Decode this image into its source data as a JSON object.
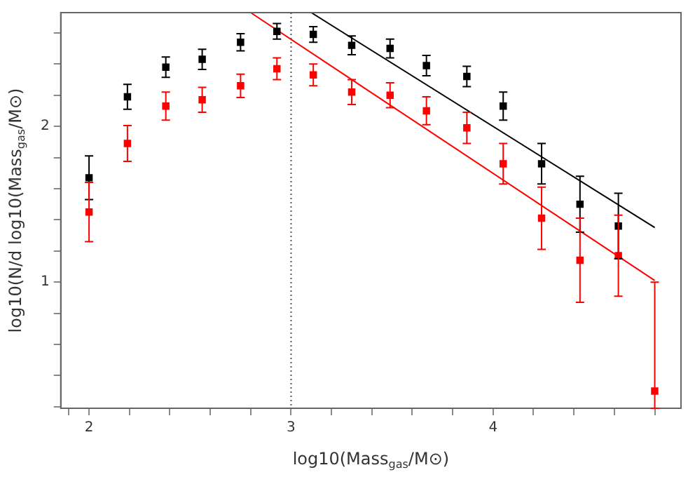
{
  "chart_data": {
    "type": "scatter",
    "xlabel": "log10(Mass$_{gas}$/M⊙)",
    "ylabel": "log10(N/d log10(Mass$_{gas}$/M⊙)",
    "marker": "square",
    "grid": false,
    "legend": false,
    "xlim": [
      1.86,
      4.93
    ],
    "ylim": [
      0.19,
      2.73
    ],
    "xticks": [
      {
        "value": 1.9,
        "label": null
      },
      2,
      {
        "value": 2.2,
        "label": null
      },
      {
        "value": 2.4,
        "label": null
      },
      {
        "value": 2.6,
        "label": null
      },
      {
        "value": 2.8,
        "label": null
      },
      3,
      {
        "value": 3.2,
        "label": null
      },
      {
        "value": 3.4,
        "label": null
      },
      {
        "value": 3.6,
        "label": null
      },
      {
        "value": 3.8,
        "label": null
      },
      4,
      {
        "value": 4.2,
        "label": null
      },
      {
        "value": 4.4,
        "label": null
      },
      {
        "value": 4.6,
        "label": null
      },
      {
        "value": 4.8,
        "label": null
      }
    ],
    "yticks": [
      {
        "value": 0.2,
        "label": null
      },
      {
        "value": 0.4,
        "label": null
      },
      {
        "value": 0.6,
        "label": null
      },
      {
        "value": 0.8,
        "label": null
      },
      1,
      {
        "value": 1.2,
        "label": null
      },
      {
        "value": 1.4,
        "label": null
      },
      {
        "value": 1.6,
        "label": null
      },
      {
        "value": 1.8,
        "label": null
      },
      2,
      {
        "value": 2.2,
        "label": null
      },
      {
        "value": 2.4,
        "label": null
      },
      {
        "value": 2.6,
        "label": null
      }
    ],
    "ref_lines": [
      {
        "axis": "x",
        "value": 3,
        "color": "#555555",
        "line_style": "dotted"
      }
    ],
    "series": [
      {
        "color": "#000000",
        "x": [
          2.0,
          2.19,
          2.38,
          2.56,
          2.75,
          2.93,
          3.11,
          3.3,
          3.49,
          3.67,
          3.87,
          4.05,
          4.24,
          4.43,
          4.62
        ],
        "values": [
          1.67,
          2.19,
          2.38,
          2.43,
          2.54,
          2.61,
          2.59,
          2.52,
          2.5,
          2.39,
          2.32,
          2.13,
          1.76,
          1.5,
          1.36
        ],
        "errors": [
          0.14,
          0.08,
          0.065,
          0.065,
          0.055,
          0.05,
          0.05,
          0.06,
          0.06,
          0.065,
          0.065,
          0.09,
          0.13,
          0.18,
          0.21
        ]
      },
      {
        "color": "#ff0000",
        "x": [
          2.0,
          2.19,
          2.38,
          2.56,
          2.75,
          2.93,
          3.11,
          3.3,
          3.49,
          3.67,
          3.87,
          4.05,
          4.24,
          4.43,
          4.62,
          4.8
        ],
        "values": [
          1.45,
          1.89,
          2.13,
          2.17,
          2.26,
          2.37,
          2.33,
          2.22,
          2.2,
          2.1,
          1.99,
          1.76,
          1.41,
          1.14,
          1.17,
          0.3
        ],
        "errors": [
          0.19,
          0.115,
          0.09,
          0.08,
          0.075,
          0.07,
          0.07,
          0.08,
          0.08,
          0.09,
          0.1,
          0.13,
          0.2,
          0.27,
          0.26,
          [
            0.19,
            1.0
          ]
        ]
      },
      {
        "type": "line",
        "color": "#000000",
        "marker": "none",
        "x": [
          3.1,
          4.8
        ],
        "values": [
          2.73,
          1.35
        ]
      },
      {
        "type": "line",
        "color": "#ff0000",
        "marker": "none",
        "x": [
          2.8,
          4.8
        ],
        "values": [
          2.73,
          1.01
        ]
      }
    ]
  }
}
